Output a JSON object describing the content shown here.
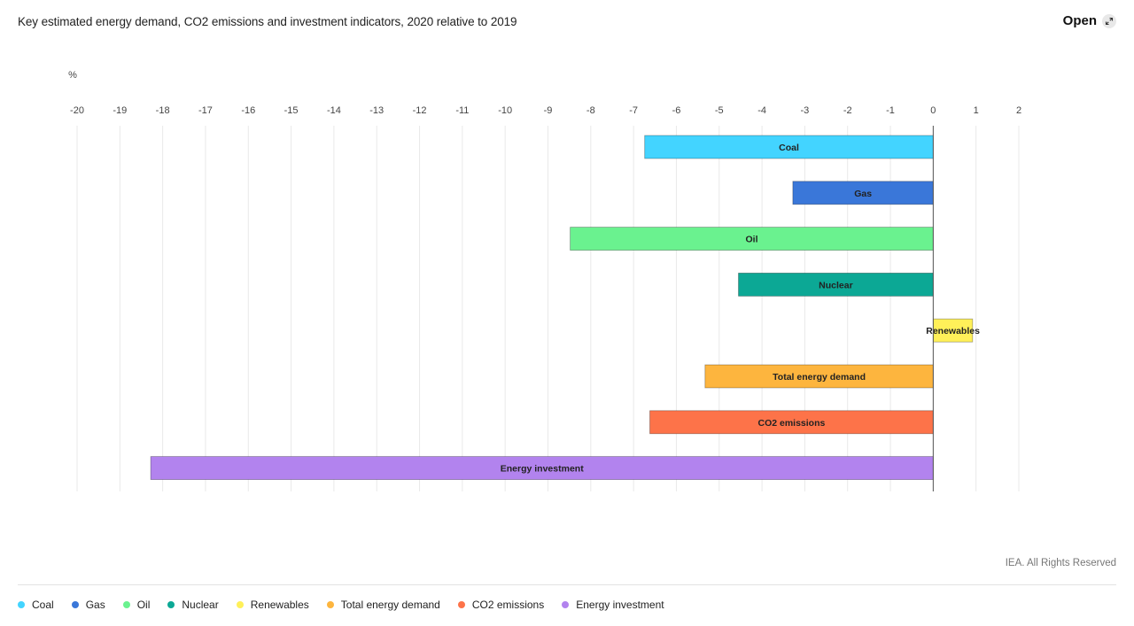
{
  "header": {
    "title": "Key estimated energy demand, CO2 emissions and investment indicators, 2020 relative to 2019",
    "open_label": "Open"
  },
  "footer": {
    "credit": "IEA. All Rights Reserved"
  },
  "chart_data": {
    "type": "bar",
    "orientation": "horizontal",
    "title": "Key estimated energy demand, CO2 emissions and investment indicators, 2020 relative to 2019",
    "unit_label": "%",
    "xlim": [
      -20,
      2
    ],
    "ticks": [
      -20,
      -19,
      -18,
      -17,
      -16,
      -15,
      -14,
      -13,
      -12,
      -11,
      -10,
      -9,
      -8,
      -7,
      -6,
      -5,
      -4,
      -3,
      -2,
      -1,
      0,
      1,
      2
    ],
    "grid": true,
    "legend_position": "bottom",
    "categories": [
      "Coal",
      "Gas",
      "Oil",
      "Nuclear",
      "Renewables",
      "Total energy demand",
      "CO2 emissions",
      "Energy investment"
    ],
    "values": [
      -6.74,
      -3.28,
      -8.48,
      -4.55,
      0.92,
      -5.33,
      -6.62,
      -18.28
    ],
    "colors": [
      "#43d4ff",
      "#3a77d9",
      "#6af28f",
      "#0ca895",
      "#fff059",
      "#fdb53e",
      "#fd7349",
      "#b283ee"
    ]
  }
}
